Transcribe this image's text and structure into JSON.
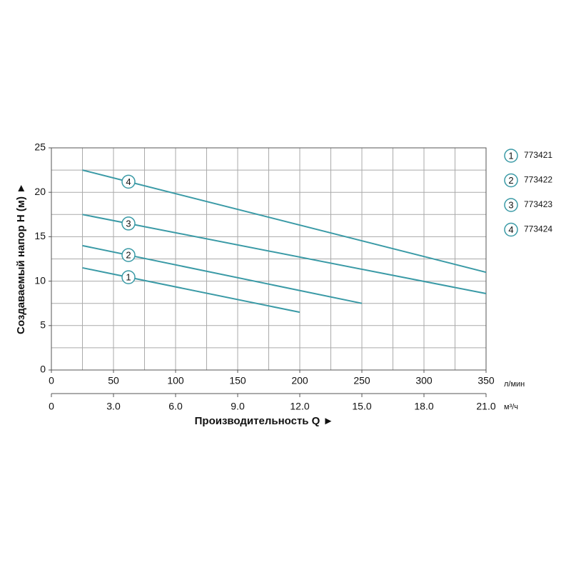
{
  "chart_data": {
    "type": "line",
    "ylabel": "Создаваемый напор H (м) ►",
    "xlabel": "Производительность Q ►",
    "xunit": "л/мин",
    "x2unit": "м³/ч",
    "xlim": [
      0,
      350
    ],
    "xticks": [
      0,
      50,
      100,
      150,
      200,
      250,
      300,
      350
    ],
    "x2lim": [
      0,
      21
    ],
    "x2ticks": [
      0,
      {
        "value": 3,
        "label": "3.0"
      },
      {
        "value": 6,
        "label": "6.0"
      },
      {
        "value": 9,
        "label": "9.0"
      },
      {
        "value": 12,
        "label": "12.0"
      },
      {
        "value": 15,
        "label": "15.0"
      },
      {
        "value": 18,
        "label": "18.0"
      },
      {
        "value": 21,
        "label": "21.0"
      }
    ],
    "ylim": [
      0,
      25
    ],
    "yticks": [
      0,
      5,
      10,
      15,
      20,
      25
    ],
    "xgrid": [
      25,
      50,
      75,
      100,
      125,
      150,
      175,
      200,
      225,
      250,
      275,
      300,
      325
    ],
    "ygrid": [
      2.5,
      5,
      7.5,
      10,
      12.5,
      15,
      17.5,
      20,
      22.5
    ],
    "grid": true,
    "series": [
      {
        "name": "773421",
        "marker": "1",
        "color": "#3a9aa6",
        "x": [
          25,
          200
        ],
        "values": [
          11.5,
          6.5
        ]
      },
      {
        "name": "773422",
        "marker": "2",
        "color": "#3a9aa6",
        "x": [
          25,
          250
        ],
        "values": [
          14,
          7.5
        ]
      },
      {
        "name": "773423",
        "marker": "3",
        "color": "#3a9aa6",
        "x": [
          25,
          350
        ],
        "values": [
          17.5,
          8.6
        ]
      },
      {
        "name": "773424",
        "marker": "4",
        "color": "#3a9aa6",
        "x": [
          25,
          350
        ],
        "values": [
          22.5,
          11
        ]
      }
    ]
  }
}
